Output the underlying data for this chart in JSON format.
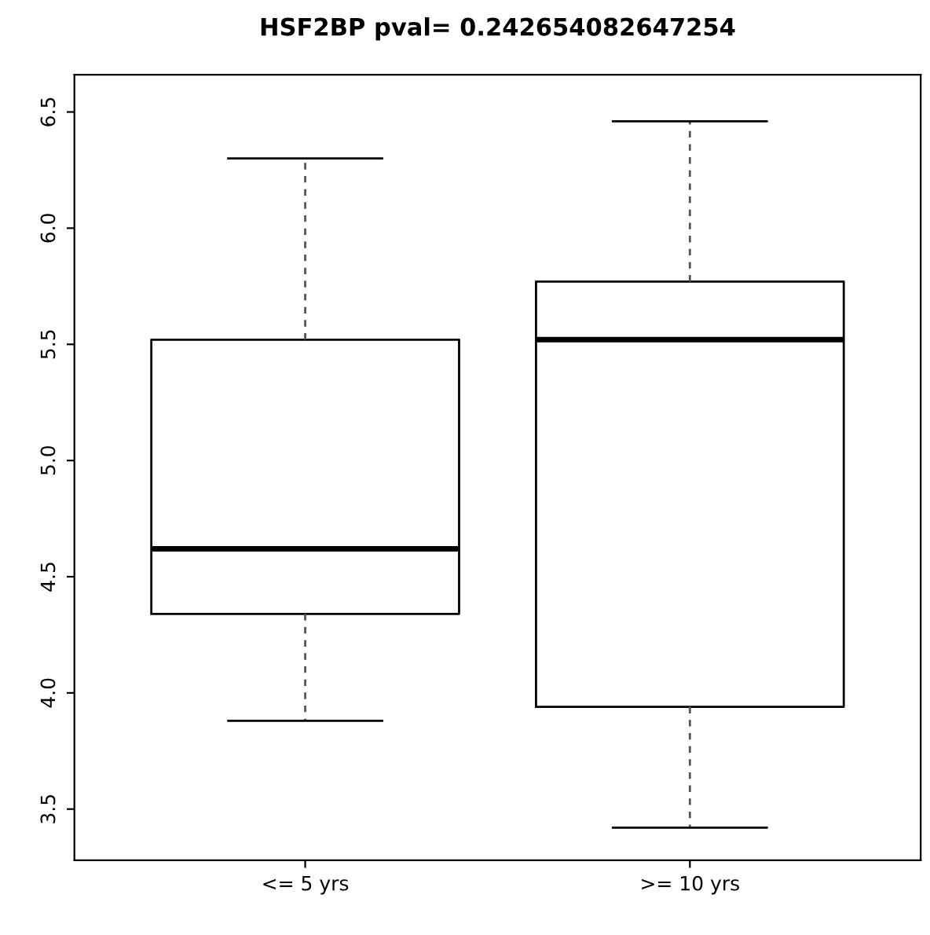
{
  "chart_data": {
    "type": "box",
    "title": "HSF2BP pval= 0.242654082647254",
    "categories": [
      "<= 5 yrs",
      ">= 10 yrs"
    ],
    "boxes": [
      {
        "low": 3.88,
        "q1": 4.34,
        "median": 4.62,
        "q3": 5.52,
        "high": 6.3
      },
      {
        "low": 3.42,
        "q1": 3.94,
        "median": 5.52,
        "q3": 5.77,
        "high": 6.46
      }
    ],
    "ylim": [
      3.28,
      6.66
    ],
    "yticks": [
      3.5,
      {
        "value": 4,
        "label": "4.0"
      },
      4.5,
      {
        "value": 5,
        "label": "5.0"
      },
      5.5,
      {
        "value": 6,
        "label": "6.0"
      },
      6.5
    ],
    "grid": false
  }
}
